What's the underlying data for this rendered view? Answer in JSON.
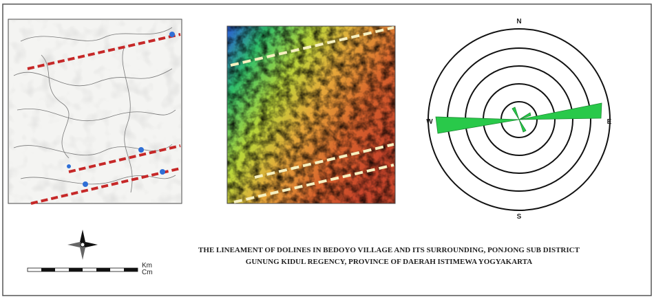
{
  "rose": {
    "north": "N",
    "south": "S",
    "east": "E",
    "west": "W"
  },
  "scale": {
    "unit_top": "Km",
    "unit_bottom": "Cm"
  },
  "caption": {
    "line1": "THE LINEAMENT OF DOLINES IN BEDOYO VILLAGE AND ITS SURROUNDING,  PONJONG SUB DISTRICT",
    "line2": "GUNUNG KIDUL REGENCY, PROVINCE OF DAERAH ISTIMEWA YOGYAKARTA"
  }
}
